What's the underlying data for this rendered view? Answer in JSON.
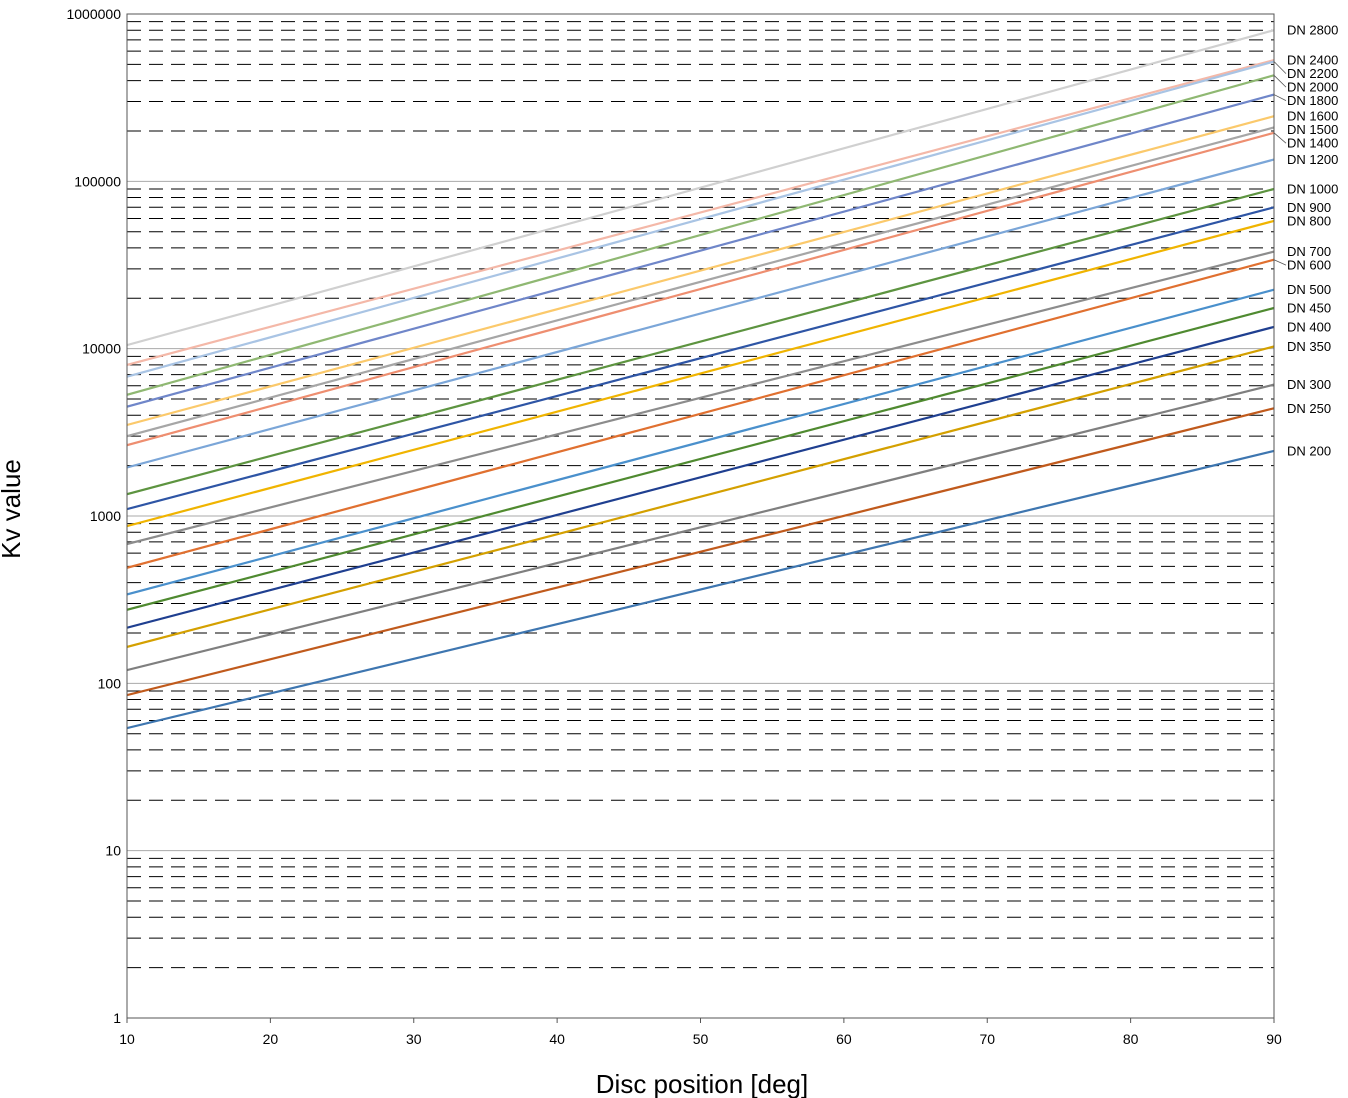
{
  "chart_data": {
    "type": "line",
    "title": "",
    "xlabel": "Disc position [deg]",
    "ylabel": "Kv value",
    "xlim": [
      10,
      90
    ],
    "ylim": [
      1,
      1000000
    ],
    "yscale": "log",
    "xticks": [
      10,
      20,
      30,
      40,
      50,
      60,
      70,
      80,
      90
    ],
    "yticks": [
      "1",
      "10",
      "100",
      "1000",
      "10000",
      "100000",
      "1000000"
    ],
    "grid": "major solid, minor dashed",
    "legend": "line labels at right edge",
    "series": [
      {
        "name": "DN 2800",
        "color": "#d0d0d0",
        "x": [
          10,
          90
        ],
        "y": [
          10500,
          800000
        ]
      },
      {
        "name": "DN 2400",
        "color": "#f4b8a8",
        "x": [
          10,
          90
        ],
        "y": [
          8000,
          530000
        ]
      },
      {
        "name": "DN 2200",
        "color": "#a9c4e4",
        "x": [
          10,
          90
        ],
        "y": [
          6800,
          520000
        ]
      },
      {
        "name": "DN 2000",
        "color": "#8fb872",
        "x": [
          10,
          90
        ],
        "y": [
          5300,
          430000
        ]
      },
      {
        "name": "DN 1800",
        "color": "#6f86c9",
        "x": [
          10,
          90
        ],
        "y": [
          4500,
          330000
        ]
      },
      {
        "name": "DN 1600",
        "color": "#fbc96b",
        "x": [
          10,
          90
        ],
        "y": [
          3500,
          245000
        ]
      },
      {
        "name": "DN 1500",
        "color": "#a6a6a6",
        "x": [
          10,
          90
        ],
        "y": [
          3000,
          210000
        ]
      },
      {
        "name": "DN 1400",
        "color": "#ee8e70",
        "x": [
          10,
          90
        ],
        "y": [
          2650,
          195000
        ]
      },
      {
        "name": "DN 1200",
        "color": "#7ba6d8",
        "x": [
          10,
          90
        ],
        "y": [
          1950,
          135000
        ]
      },
      {
        "name": "DN 1000",
        "color": "#5d9440",
        "x": [
          10,
          90
        ],
        "y": [
          1350,
          90000
        ]
      },
      {
        "name": "DN 900",
        "color": "#2e55a5",
        "x": [
          10,
          90
        ],
        "y": [
          1100,
          70000
        ]
      },
      {
        "name": "DN 800",
        "color": "#f0b400",
        "x": [
          10,
          90
        ],
        "y": [
          870,
          58000
        ]
      },
      {
        "name": "DN 700",
        "color": "#8c8c8c",
        "x": [
          10,
          90
        ],
        "y": [
          680,
          38000
        ]
      },
      {
        "name": "DN 600",
        "color": "#e07030",
        "x": [
          10,
          90
        ],
        "y": [
          490,
          34000
        ]
      },
      {
        "name": "DN 500",
        "color": "#4a90cc",
        "x": [
          10,
          90
        ],
        "y": [
          340,
          22500
        ]
      },
      {
        "name": "DN 450",
        "color": "#4f8a30",
        "x": [
          10,
          90
        ],
        "y": [
          275,
          17500
        ]
      },
      {
        "name": "DN 400",
        "color": "#1f3f90",
        "x": [
          10,
          90
        ],
        "y": [
          215,
          13500
        ]
      },
      {
        "name": "DN 350",
        "color": "#d4a000",
        "x": [
          10,
          90
        ],
        "y": [
          165,
          10300
        ]
      },
      {
        "name": "DN 300",
        "color": "#7f7f7f",
        "x": [
          10,
          90
        ],
        "y": [
          120,
          6100
        ]
      },
      {
        "name": "DN 250",
        "color": "#c05a1c",
        "x": [
          10,
          90
        ],
        "y": [
          85,
          4400
        ]
      },
      {
        "name": "DN 200",
        "color": "#3e76b0",
        "x": [
          10,
          90
        ],
        "y": [
          54,
          2450
        ]
      }
    ]
  }
}
